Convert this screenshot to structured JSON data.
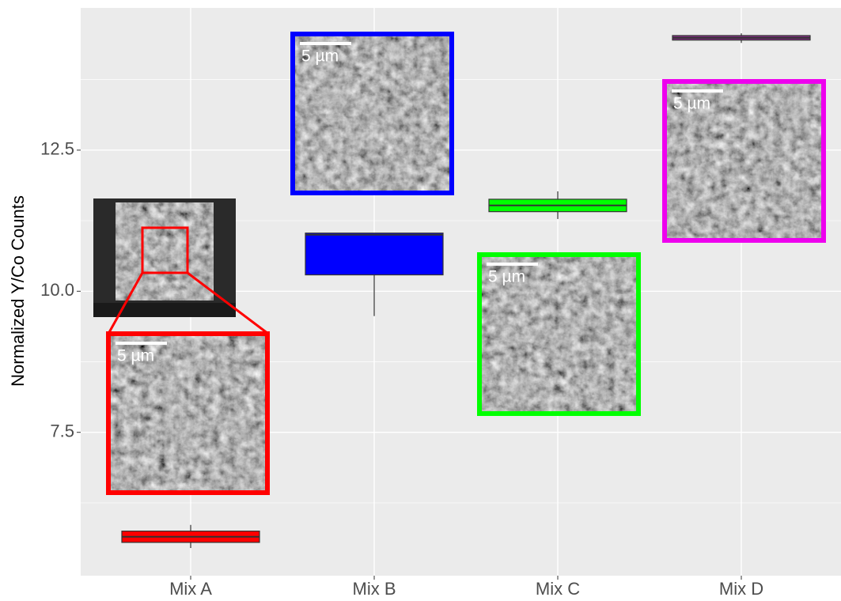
{
  "chart_data": {
    "type": "box",
    "y_label": "Normalized Y/Co Counts",
    "categories": [
      "Mix A",
      "Mix B",
      "Mix C",
      "Mix D"
    ],
    "boxes": [
      {
        "color": "#ff0000",
        "whisker_low": 5.45,
        "q1": 5.55,
        "median": 5.65,
        "q3": 5.75,
        "whisker_high": 5.86
      },
      {
        "color": "#0000ff",
        "whisker_low": 9.56,
        "q1": 10.29,
        "median": 11.0,
        "q3": 11.03,
        "whisker_high": 11.03
      },
      {
        "color": "#00ff00",
        "whisker_low": 11.28,
        "q1": 11.41,
        "median": 11.52,
        "q3": 11.63,
        "whisker_high": 11.77
      },
      {
        "color": "#7f2d7f",
        "whisker_low": 14.4,
        "q1": 14.45,
        "median": 14.49,
        "q3": 14.53,
        "whisker_high": 14.57
      }
    ],
    "ylim": [
      4.96,
      15.02
    ],
    "yticks": [
      7.5,
      {
        "value": 10,
        "label": "10.0"
      },
      12.5
    ],
    "minor_yticks": [
      6.25,
      8.75,
      11.25,
      13.75
    ],
    "grid": true,
    "insets": [
      {
        "scale_label": "5 µm",
        "frame_color": "#ff0000"
      },
      {
        "scale_label": "5 µm",
        "frame_color": "#0000ff"
      },
      {
        "scale_label": "5 µm",
        "frame_color": "#00ff00"
      },
      {
        "scale_label": "5 µm",
        "frame_color": "#ee00ee"
      }
    ]
  }
}
